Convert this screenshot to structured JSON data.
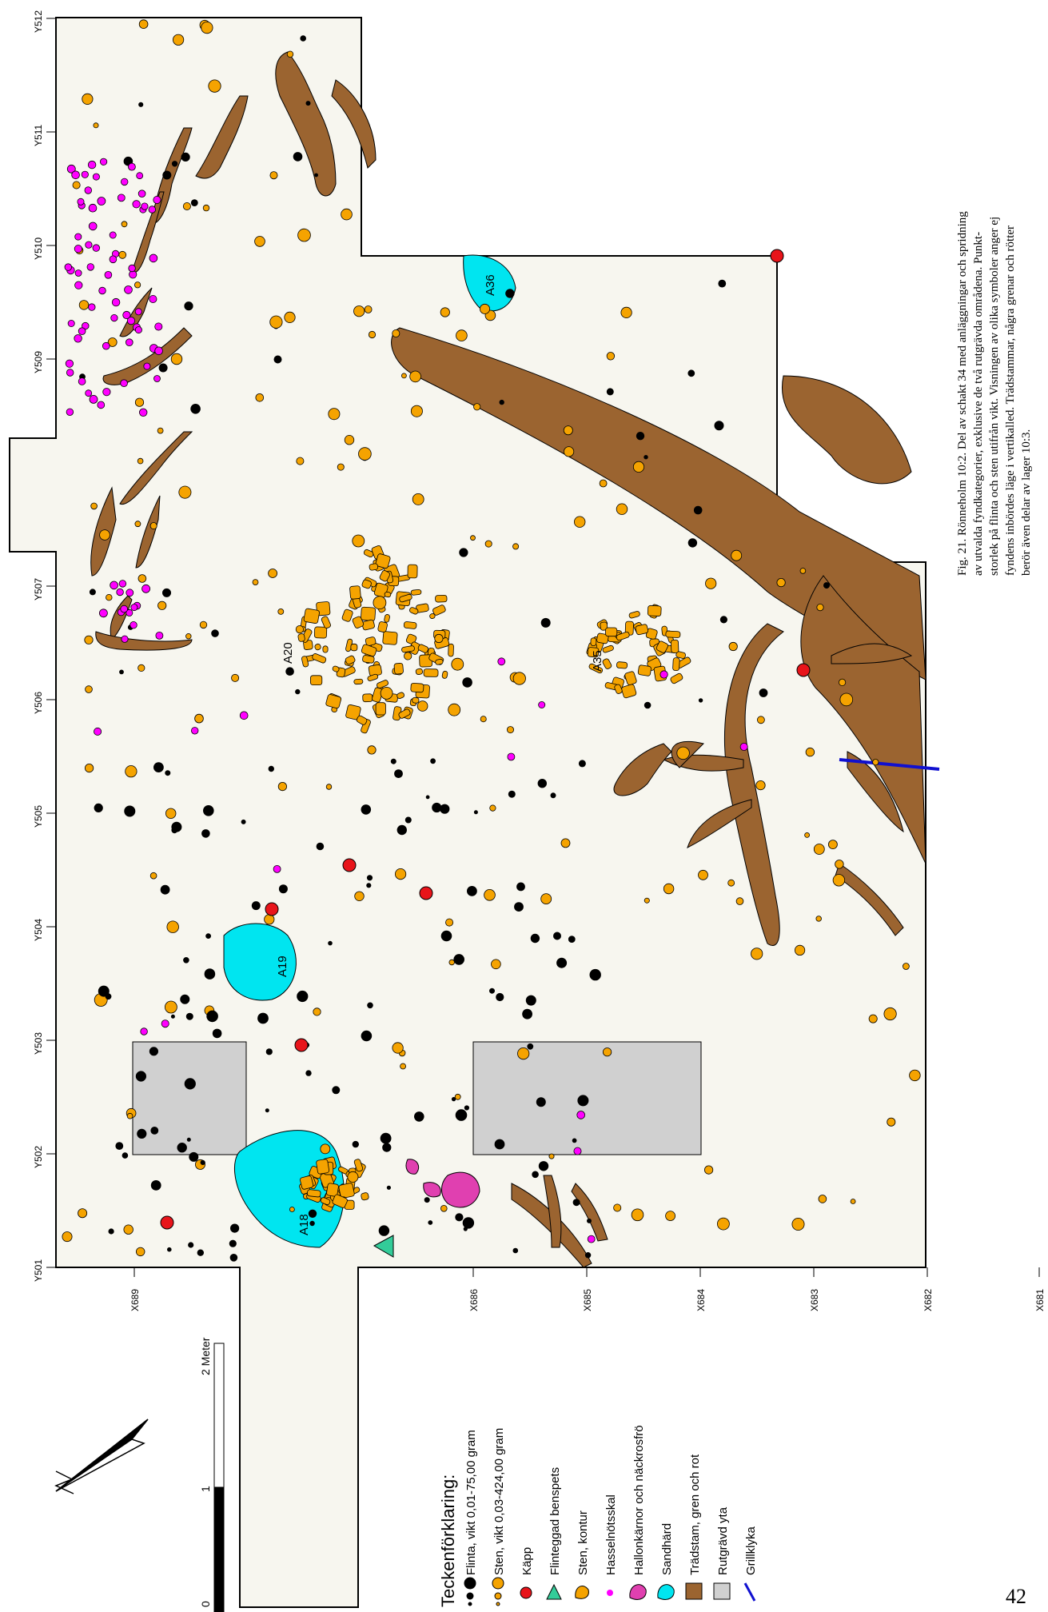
{
  "caption": {
    "lines": [
      "Fig. 21. Rönneholm 10:2. Del av schakt 34 med anläggningar och spridning",
      "av utvalda fyndkategorier, exklusive de två rutgrävda områdena. Punkt-",
      "storlek på flinta och sten utifrån vikt. Visningen av olika symboler anger ej",
      "fyndens inbördes läge i vertikalled. Trädstammar, några grenar och rötter",
      "berör även delar av lager 10:3."
    ]
  },
  "page_number": "42",
  "y_axis": [
    "Y501",
    "Y502",
    "Y503",
    "Y504",
    "Y505",
    "Y506",
    "Y507",
    "Y509",
    "Y510",
    "Y511",
    "Y512"
  ],
  "x_axis": [
    "X689",
    "X686",
    "X685",
    "X684",
    "X683",
    "X682",
    "X681"
  ],
  "features": {
    "a18": "A18",
    "a19": "A19",
    "a20": "A20",
    "a35": "A35",
    "a36": "A36"
  },
  "scale_bar": {
    "labels": [
      "0",
      "1",
      "2 Meter"
    ]
  },
  "legend": {
    "title": "Teckenförklaring:",
    "items": [
      {
        "label": "Flinta, vikt 0,01-75,00 gram",
        "symbol": "flint-dots",
        "color": "#000000"
      },
      {
        "label": "Sten, vikt 0,03-424,00 gram",
        "symbol": "stone-dots",
        "color": "#f5a300"
      },
      {
        "label": "Käpp",
        "symbol": "red-dot",
        "color": "#e8141a"
      },
      {
        "label": "Flinteggad benspets",
        "symbol": "green-triangle",
        "color": "#33cc99"
      },
      {
        "label": "Sten, kontur",
        "symbol": "stone-outline",
        "color": "#f5a300"
      },
      {
        "label": "Hasselnötsskal",
        "symbol": "magenta-dot",
        "color": "#ff00ff"
      },
      {
        "label": "Hallonkärnor och näckrosfrö",
        "symbol": "pink-blob",
        "color": "#e040b0"
      },
      {
        "label": "Sandhärd",
        "symbol": "cyan-blob",
        "color": "#00e5f0"
      },
      {
        "label": "Trädstam, gren och rot",
        "symbol": "brown-square",
        "color": "#9b6430"
      },
      {
        "label": "Rutgrävd yta",
        "symbol": "grey-square",
        "color": "#d0d0d0"
      },
      {
        "label": "Grillklyka",
        "symbol": "blue-line",
        "color": "#1010d0"
      }
    ]
  },
  "colors": {
    "background": "#f7f6ef",
    "flint": "#000000",
    "stone": "#f5a300",
    "kapp": "#e8141a",
    "hazel": "#ff00ff",
    "hearth": "#00e5f0",
    "tree": "#9b6430",
    "grid_area": "#d0d0d0",
    "grill": "#1010d0"
  }
}
